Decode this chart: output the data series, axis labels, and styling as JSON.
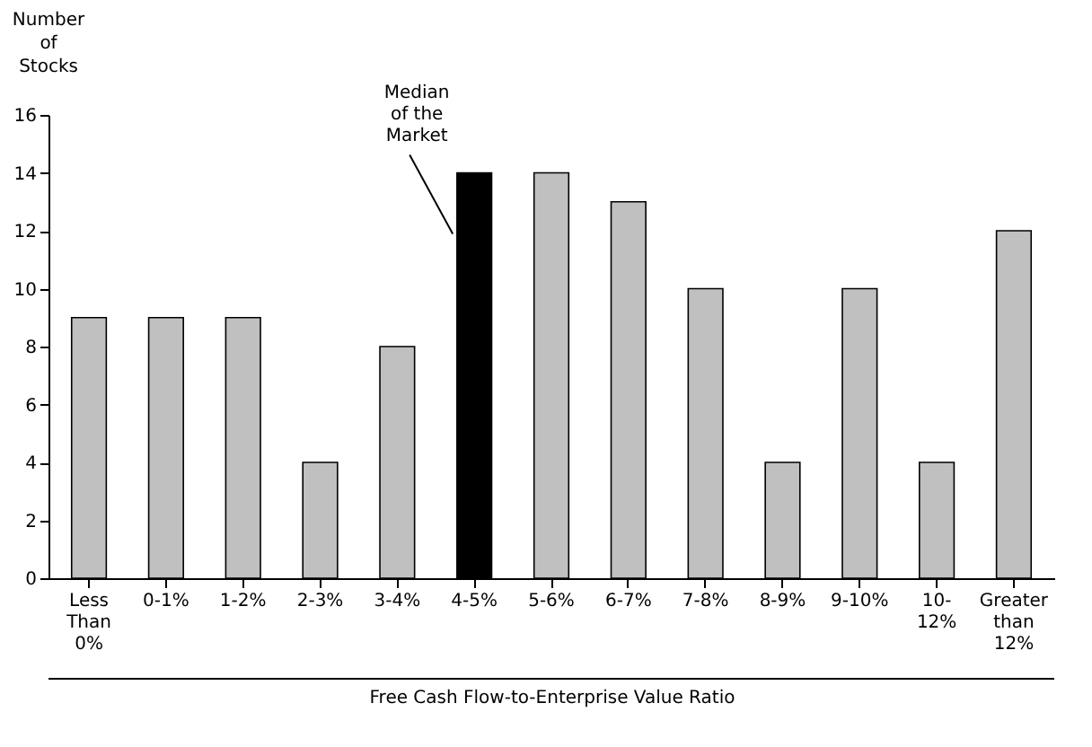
{
  "chart_data": {
    "type": "bar",
    "ylabel": "Number of Stocks",
    "xlabel": "Free Cash Flow-to-Enterprise Value Ratio",
    "categories": [
      "Less Than 0%",
      "0-1%",
      "1-2%",
      "2-3%",
      "3-4%",
      "4-5%",
      "5-6%",
      "6-7%",
      "7-8%",
      "8-9%",
      "9-10%",
      "10-12%",
      "Greater than 12%"
    ],
    "values": [
      9,
      9,
      9,
      4,
      8,
      14,
      14,
      13,
      10,
      4,
      10,
      4,
      12
    ],
    "colors": [
      "#c0c0c0",
      "#c0c0c0",
      "#c0c0c0",
      "#c0c0c0",
      "#c0c0c0",
      "#000000",
      "#c0c0c0",
      "#c0c0c0",
      "#c0c0c0",
      "#c0c0c0",
      "#c0c0c0",
      "#c0c0c0",
      "#c0c0c0"
    ],
    "ylim": [
      0,
      16
    ],
    "yticks": [
      0,
      2,
      4,
      6,
      8,
      10,
      12,
      14,
      16
    ],
    "annotations": [
      {
        "text": "Median of the Market",
        "x": "4-5%",
        "y": 14
      }
    ],
    "grid": false
  }
}
